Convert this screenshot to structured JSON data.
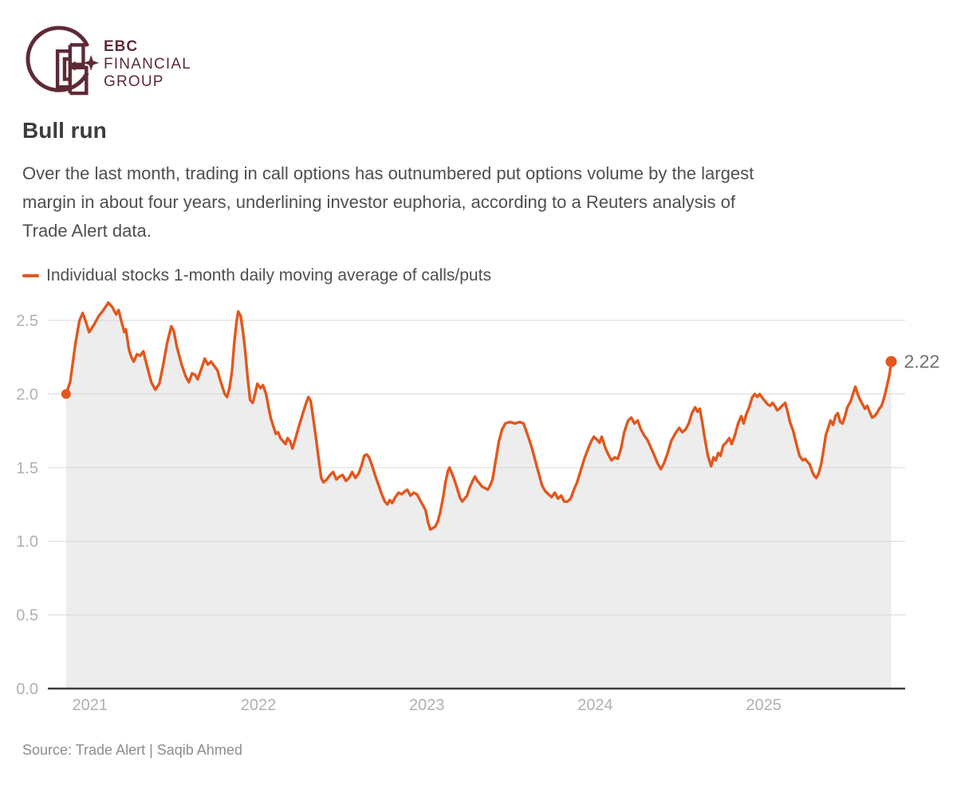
{
  "brand": {
    "line1": "EBC",
    "line2": "FINANCIAL",
    "line3": "GROUP",
    "color": "#5d2a36"
  },
  "title": "Bull run",
  "description_lines": [
    "Over the last month, trading in call options has outnumbered put options volume by the largest",
    "margin in about four years, underlining investor euphoria, according to a Reuters analysis of",
    "Trade Alert data."
  ],
  "legend": {
    "label": "Individual stocks 1-month daily moving average of calls/puts",
    "color": "#e2571c"
  },
  "source": "Source: Trade Alert | Saqib Ahmed",
  "chart_data": {
    "type": "line",
    "title": "Bull run",
    "ylabel": "Individual stocks 1-month daily moving average of calls/puts",
    "xlabel": "",
    "x_ticks": [
      2021,
      2022,
      2023,
      2024,
      2025
    ],
    "y_ticks": [
      0.0,
      0.5,
      1.0,
      1.5,
      2.0,
      2.5
    ],
    "xlim": [
      2020.75,
      2025.84
    ],
    "ylim": [
      0,
      2.7
    ],
    "grid": "horizontal",
    "legend_position": "top-left",
    "line_color": "#e2571c",
    "area_color": "#ededed",
    "grid_color": "#d9d7d7",
    "axis_color": "#3f3f3f",
    "tick_color": "#b2afaf",
    "end_label_color": "#6f6f6f",
    "last_value_label": "2.22",
    "start_marker_value": 2.0,
    "end_marker_value": 2.22,
    "series": [
      {
        "name": "Individual stocks 1-month daily moving average of calls/puts",
        "points": [
          [
            2020.858,
            2.0
          ],
          [
            2020.882,
            2.08
          ],
          [
            2020.915,
            2.35
          ],
          [
            2020.938,
            2.5
          ],
          [
            2020.957,
            2.55
          ],
          [
            2020.976,
            2.49
          ],
          [
            2020.995,
            2.42
          ],
          [
            2021.024,
            2.47
          ],
          [
            2021.052,
            2.53
          ],
          [
            2021.08,
            2.57
          ],
          [
            2021.109,
            2.62
          ],
          [
            2021.133,
            2.59
          ],
          [
            2021.156,
            2.54
          ],
          [
            2021.17,
            2.57
          ],
          [
            2021.185,
            2.5
          ],
          [
            2021.204,
            2.42
          ],
          [
            2021.213,
            2.44
          ],
          [
            2021.232,
            2.3
          ],
          [
            2021.246,
            2.25
          ],
          [
            2021.26,
            2.22
          ],
          [
            2021.279,
            2.27
          ],
          [
            2021.298,
            2.26
          ],
          [
            2021.317,
            2.29
          ],
          [
            2021.341,
            2.18
          ],
          [
            2021.364,
            2.08
          ],
          [
            2021.388,
            2.03
          ],
          [
            2021.412,
            2.07
          ],
          [
            2021.435,
            2.2
          ],
          [
            2021.459,
            2.35
          ],
          [
            2021.483,
            2.46
          ],
          [
            2021.497,
            2.43
          ],
          [
            2021.516,
            2.32
          ],
          [
            2021.544,
            2.2
          ],
          [
            2021.568,
            2.12
          ],
          [
            2021.587,
            2.08
          ],
          [
            2021.606,
            2.14
          ],
          [
            2021.625,
            2.13
          ],
          [
            2021.639,
            2.1
          ],
          [
            2021.658,
            2.16
          ],
          [
            2021.682,
            2.24
          ],
          [
            2021.7,
            2.2
          ],
          [
            2021.719,
            2.22
          ],
          [
            2021.738,
            2.19
          ],
          [
            2021.757,
            2.16
          ],
          [
            2021.772,
            2.1
          ],
          [
            2021.786,
            2.05
          ],
          [
            2021.8,
            2.0
          ],
          [
            2021.814,
            1.98
          ],
          [
            2021.828,
            2.04
          ],
          [
            2021.843,
            2.15
          ],
          [
            2021.857,
            2.35
          ],
          [
            2021.871,
            2.5
          ],
          [
            2021.88,
            2.56
          ],
          [
            2021.895,
            2.53
          ],
          [
            2021.909,
            2.42
          ],
          [
            2021.923,
            2.28
          ],
          [
            2021.937,
            2.1
          ],
          [
            2021.951,
            1.96
          ],
          [
            2021.966,
            1.94
          ],
          [
            2021.98,
            2.0
          ],
          [
            2021.994,
            2.07
          ],
          [
            2022.013,
            2.04
          ],
          [
            2022.027,
            2.06
          ],
          [
            2022.046,
            2.0
          ],
          [
            2022.06,
            1.91
          ],
          [
            2022.075,
            1.83
          ],
          [
            2022.089,
            1.78
          ],
          [
            2022.103,
            1.73
          ],
          [
            2022.117,
            1.74
          ],
          [
            2022.131,
            1.7
          ],
          [
            2022.146,
            1.68
          ],
          [
            2022.16,
            1.66
          ],
          [
            2022.174,
            1.7
          ],
          [
            2022.188,
            1.68
          ],
          [
            2022.202,
            1.63
          ],
          [
            2022.221,
            1.7
          ],
          [
            2022.24,
            1.78
          ],
          [
            2022.259,
            1.85
          ],
          [
            2022.278,
            1.92
          ],
          [
            2022.297,
            1.98
          ],
          [
            2022.311,
            1.95
          ],
          [
            2022.33,
            1.8
          ],
          [
            2022.344,
            1.68
          ],
          [
            2022.359,
            1.55
          ],
          [
            2022.373,
            1.43
          ],
          [
            2022.387,
            1.4
          ],
          [
            2022.406,
            1.42
          ],
          [
            2022.425,
            1.45
          ],
          [
            2022.444,
            1.47
          ],
          [
            2022.463,
            1.42
          ],
          [
            2022.482,
            1.44
          ],
          [
            2022.5,
            1.45
          ],
          [
            2022.52,
            1.41
          ],
          [
            2022.538,
            1.43
          ],
          [
            2022.557,
            1.47
          ],
          [
            2022.576,
            1.43
          ],
          [
            2022.595,
            1.46
          ],
          [
            2022.614,
            1.52
          ],
          [
            2022.628,
            1.58
          ],
          [
            2022.643,
            1.59
          ],
          [
            2022.657,
            1.57
          ],
          [
            2022.676,
            1.51
          ],
          [
            2022.695,
            1.44
          ],
          [
            2022.714,
            1.38
          ],
          [
            2022.732,
            1.32
          ],
          [
            2022.751,
            1.27
          ],
          [
            2022.766,
            1.25
          ],
          [
            2022.78,
            1.28
          ],
          [
            2022.794,
            1.26
          ],
          [
            2022.813,
            1.3
          ],
          [
            2022.832,
            1.33
          ],
          [
            2022.851,
            1.32
          ],
          [
            2022.87,
            1.34
          ],
          [
            2022.884,
            1.35
          ],
          [
            2022.903,
            1.31
          ],
          [
            2022.922,
            1.33
          ],
          [
            2022.941,
            1.32
          ],
          [
            2022.96,
            1.28
          ],
          [
            2022.979,
            1.24
          ],
          [
            2022.993,
            1.21
          ],
          [
            2023.007,
            1.13
          ],
          [
            2023.021,
            1.08
          ],
          [
            2023.036,
            1.09
          ],
          [
            2023.05,
            1.1
          ],
          [
            2023.064,
            1.13
          ],
          [
            2023.078,
            1.19
          ],
          [
            2023.097,
            1.3
          ],
          [
            2023.111,
            1.4
          ],
          [
            2023.126,
            1.48
          ],
          [
            2023.135,
            1.5
          ],
          [
            2023.149,
            1.46
          ],
          [
            2023.163,
            1.42
          ],
          [
            2023.177,
            1.37
          ],
          [
            2023.196,
            1.3
          ],
          [
            2023.21,
            1.27
          ],
          [
            2023.225,
            1.29
          ],
          [
            2023.239,
            1.31
          ],
          [
            2023.253,
            1.36
          ],
          [
            2023.272,
            1.41
          ],
          [
            2023.286,
            1.44
          ],
          [
            2023.3,
            1.41
          ],
          [
            2023.315,
            1.39
          ],
          [
            2023.329,
            1.37
          ],
          [
            2023.348,
            1.36
          ],
          [
            2023.362,
            1.35
          ],
          [
            2023.376,
            1.38
          ],
          [
            2023.39,
            1.42
          ],
          [
            2023.409,
            1.55
          ],
          [
            2023.428,
            1.68
          ],
          [
            2023.447,
            1.76
          ],
          [
            2023.466,
            1.8
          ],
          [
            2023.495,
            1.81
          ],
          [
            2023.523,
            1.8
          ],
          [
            2023.551,
            1.81
          ],
          [
            2023.575,
            1.8
          ],
          [
            2023.599,
            1.72
          ],
          [
            2023.622,
            1.64
          ],
          [
            2023.646,
            1.54
          ],
          [
            2023.665,
            1.46
          ],
          [
            2023.684,
            1.38
          ],
          [
            2023.703,
            1.34
          ],
          [
            2023.722,
            1.32
          ],
          [
            2023.741,
            1.3
          ],
          [
            2023.76,
            1.33
          ],
          [
            2023.779,
            1.29
          ],
          [
            2023.798,
            1.31
          ],
          [
            2023.816,
            1.27
          ],
          [
            2023.835,
            1.27
          ],
          [
            2023.854,
            1.29
          ],
          [
            2023.873,
            1.35
          ],
          [
            2023.892,
            1.4
          ],
          [
            2023.911,
            1.47
          ],
          [
            2023.935,
            1.56
          ],
          [
            2023.958,
            1.63
          ],
          [
            2023.977,
            1.68
          ],
          [
            2023.992,
            1.71
          ],
          [
            2024.011,
            1.69
          ],
          [
            2024.025,
            1.67
          ],
          [
            2024.039,
            1.71
          ],
          [
            2024.058,
            1.64
          ],
          [
            2024.077,
            1.59
          ],
          [
            2024.096,
            1.55
          ],
          [
            2024.115,
            1.57
          ],
          [
            2024.134,
            1.56
          ],
          [
            2024.153,
            1.63
          ],
          [
            2024.172,
            1.74
          ],
          [
            2024.195,
            1.82
          ],
          [
            2024.214,
            1.84
          ],
          [
            2024.233,
            1.8
          ],
          [
            2024.252,
            1.82
          ],
          [
            2024.271,
            1.76
          ],
          [
            2024.29,
            1.72
          ],
          [
            2024.309,
            1.69
          ],
          [
            2024.333,
            1.63
          ],
          [
            2024.352,
            1.58
          ],
          [
            2024.37,
            1.53
          ],
          [
            2024.389,
            1.49
          ],
          [
            2024.408,
            1.53
          ],
          [
            2024.427,
            1.59
          ],
          [
            2024.451,
            1.68
          ],
          [
            2024.474,
            1.73
          ],
          [
            2024.498,
            1.77
          ],
          [
            2024.517,
            1.74
          ],
          [
            2024.536,
            1.76
          ],
          [
            2024.555,
            1.8
          ],
          [
            2024.574,
            1.87
          ],
          [
            2024.593,
            1.91
          ],
          [
            2024.607,
            1.88
          ],
          [
            2024.621,
            1.9
          ],
          [
            2024.635,
            1.81
          ],
          [
            2024.65,
            1.7
          ],
          [
            2024.669,
            1.58
          ],
          [
            2024.688,
            1.51
          ],
          [
            2024.702,
            1.57
          ],
          [
            2024.716,
            1.55
          ],
          [
            2024.73,
            1.6
          ],
          [
            2024.744,
            1.58
          ],
          [
            2024.759,
            1.65
          ],
          [
            2024.777,
            1.67
          ],
          [
            2024.796,
            1.7
          ],
          [
            2024.81,
            1.66
          ],
          [
            2024.829,
            1.72
          ],
          [
            2024.848,
            1.8
          ],
          [
            2024.867,
            1.85
          ],
          [
            2024.881,
            1.8
          ],
          [
            2024.896,
            1.86
          ],
          [
            2024.914,
            1.91
          ],
          [
            2024.933,
            1.98
          ],
          [
            2024.948,
            2.0
          ],
          [
            2024.962,
            1.98
          ],
          [
            2024.976,
            2.0
          ],
          [
            2024.995,
            1.97
          ],
          [
            2025.009,
            1.95
          ],
          [
            2025.023,
            1.93
          ],
          [
            2025.038,
            1.92
          ],
          [
            2025.052,
            1.94
          ],
          [
            2025.066,
            1.92
          ],
          [
            2025.08,
            1.89
          ],
          [
            2025.094,
            1.9
          ],
          [
            2025.109,
            1.92
          ],
          [
            2025.128,
            1.94
          ],
          [
            2025.142,
            1.88
          ],
          [
            2025.156,
            1.81
          ],
          [
            2025.175,
            1.75
          ],
          [
            2025.194,
            1.66
          ],
          [
            2025.213,
            1.58
          ],
          [
            2025.232,
            1.55
          ],
          [
            2025.246,
            1.56
          ],
          [
            2025.26,
            1.54
          ],
          [
            2025.274,
            1.52
          ],
          [
            2025.289,
            1.47
          ],
          [
            2025.303,
            1.44
          ],
          [
            2025.312,
            1.43
          ],
          [
            2025.326,
            1.46
          ],
          [
            2025.341,
            1.52
          ],
          [
            2025.355,
            1.62
          ],
          [
            2025.369,
            1.72
          ],
          [
            2025.383,
            1.77
          ],
          [
            2025.397,
            1.82
          ],
          [
            2025.412,
            1.79
          ],
          [
            2025.426,
            1.85
          ],
          [
            2025.44,
            1.87
          ],
          [
            2025.454,
            1.81
          ],
          [
            2025.468,
            1.8
          ],
          [
            2025.483,
            1.85
          ],
          [
            2025.497,
            1.91
          ],
          [
            2025.516,
            1.95
          ],
          [
            2025.53,
            2.0
          ],
          [
            2025.544,
            2.05
          ],
          [
            2025.558,
            2.0
          ],
          [
            2025.573,
            1.96
          ],
          [
            2025.587,
            1.93
          ],
          [
            2025.601,
            1.9
          ],
          [
            2025.615,
            1.92
          ],
          [
            2025.629,
            1.88
          ],
          [
            2025.644,
            1.84
          ],
          [
            2025.658,
            1.85
          ],
          [
            2025.672,
            1.87
          ],
          [
            2025.686,
            1.9
          ],
          [
            2025.7,
            1.92
          ],
          [
            2025.719,
            1.99
          ],
          [
            2025.733,
            2.06
          ],
          [
            2025.748,
            2.14
          ],
          [
            2025.757,
            2.22
          ]
        ]
      }
    ]
  }
}
